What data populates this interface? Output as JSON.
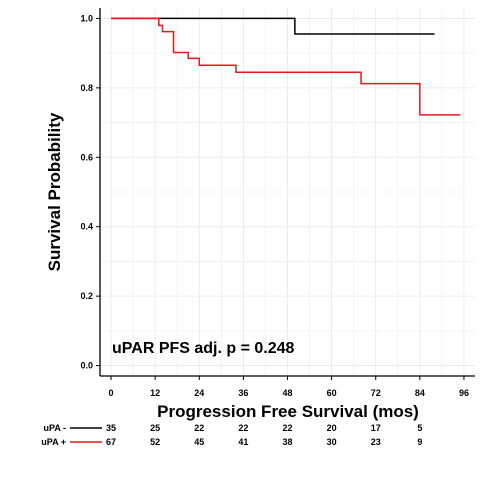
{
  "chart_data": {
    "type": "line",
    "subtype": "kaplan-meier-step",
    "title": "",
    "xlabel": "Progression Free Survival (mos)",
    "ylabel": "Survival Probability",
    "xlim": [
      -3,
      99
    ],
    "ylim": [
      -0.03,
      1.03
    ],
    "xticks": [
      0,
      12,
      24,
      36,
      48,
      60,
      72,
      84,
      96
    ],
    "yticks": [
      0.0,
      0.2,
      0.4,
      0.6,
      0.8,
      1.0
    ],
    "ytick_labels": [
      "0.0",
      "0.2",
      "0.4",
      "0.6",
      "0.8",
      "1.0"
    ],
    "grid": true,
    "annotation": "uPAR PFS  adj. p = 0.248",
    "series": [
      {
        "name": "uPA -",
        "color": "#000000",
        "steps": [
          [
            0,
            1.0
          ],
          [
            50,
            1.0
          ],
          [
            50,
            0.955
          ],
          [
            88,
            0.955
          ]
        ]
      },
      {
        "name": "uPA +",
        "color": "#e41a1c",
        "steps": [
          [
            0,
            1.0
          ],
          [
            13,
            1.0
          ],
          [
            13,
            0.98
          ],
          [
            14,
            0.98
          ],
          [
            14,
            0.962
          ],
          [
            17,
            0.962
          ],
          [
            17,
            0.902
          ],
          [
            21,
            0.902
          ],
          [
            21,
            0.885
          ],
          [
            24,
            0.885
          ],
          [
            24,
            0.865
          ],
          [
            34,
            0.865
          ],
          [
            34,
            0.845
          ],
          [
            68,
            0.845
          ],
          [
            68,
            0.812
          ],
          [
            84,
            0.812
          ],
          [
            84,
            0.722
          ],
          [
            95,
            0.722
          ]
        ]
      }
    ],
    "risk_table": {
      "times": [
        0,
        12,
        24,
        36,
        48,
        60,
        72,
        84
      ],
      "rows": [
        {
          "label": "uPA -",
          "color": "#000000",
          "counts": [
            "35",
            "25",
            "22",
            "22",
            "22",
            "20",
            "17",
            "5"
          ]
        },
        {
          "label": "uPA +",
          "color": "#e41a1c",
          "counts": [
            "67",
            "52",
            "45",
            "41",
            "38",
            "30",
            "23",
            "9"
          ]
        }
      ]
    }
  }
}
